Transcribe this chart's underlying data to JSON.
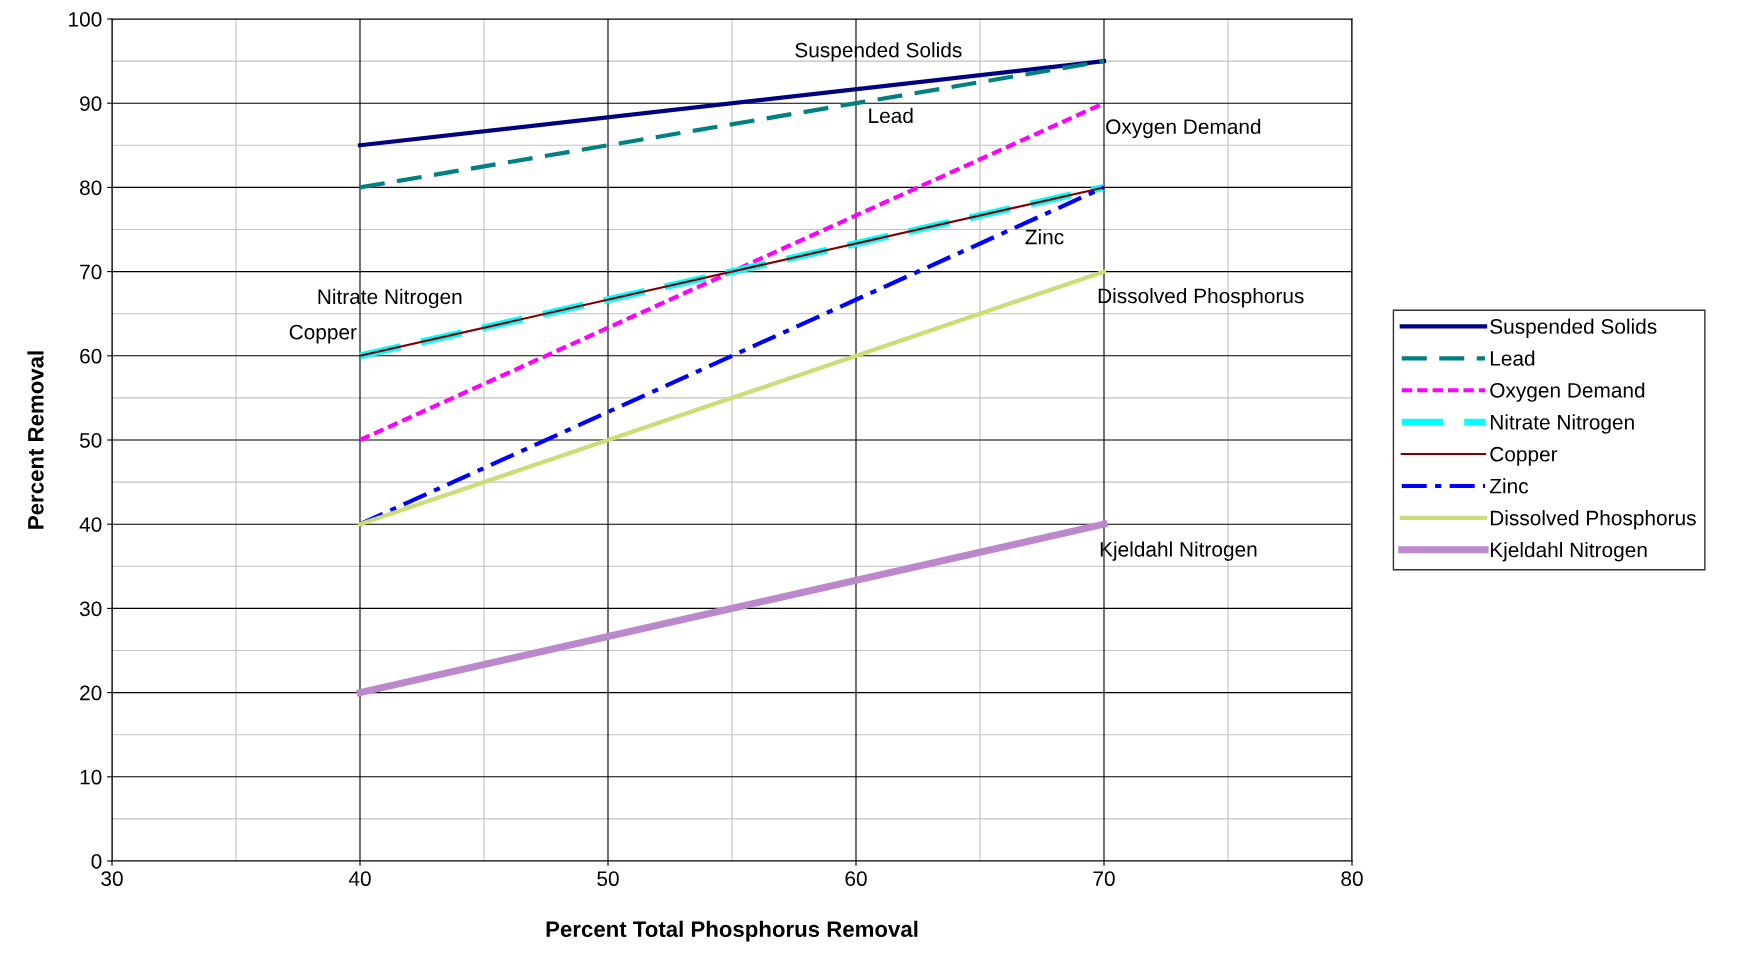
{
  "chart_data": {
    "type": "line",
    "xlabel": "Percent Total Phosphorus Removal",
    "ylabel": "Percent Removal",
    "x": [
      40,
      70
    ],
    "series": [
      {
        "name": "Suspended Solids",
        "color": "#000080",
        "line_style": "solid",
        "values": [
          85,
          95
        ]
      },
      {
        "name": "Lead",
        "color": "#008080",
        "line_style": "dashed",
        "values": [
          80,
          95
        ]
      },
      {
        "name": "Oxygen Demand",
        "color": "#ff00ff",
        "line_style": "dotted",
        "values": [
          50,
          90
        ]
      },
      {
        "name": "Nitrate Nitrogen",
        "color": "#00ffff",
        "line_style": "dashed",
        "values": [
          60,
          80
        ]
      },
      {
        "name": "Copper",
        "color": "#800000",
        "line_style": "solid",
        "values": [
          60,
          80
        ]
      },
      {
        "name": "Zinc",
        "color": "#0000ff",
        "line_style": "dashdot",
        "values": [
          40,
          80
        ]
      },
      {
        "name": "Dissolved Phosphorus",
        "color": "#ccdd77",
        "line_style": "solid",
        "values": [
          40,
          70
        ]
      },
      {
        "name": "Kjeldahl Nitrogen",
        "color": "#bb88cc",
        "line_style": "solid",
        "values": [
          20,
          40
        ]
      }
    ],
    "xlim": [
      30,
      80
    ],
    "xticks": [
      30,
      40,
      50,
      60,
      70,
      80
    ],
    "ylim": [
      0,
      100
    ],
    "yticks": [
      0,
      10,
      20,
      30,
      40,
      50,
      60,
      70,
      80,
      90,
      100
    ],
    "grid": true,
    "legend": "right",
    "marker": "none"
  }
}
